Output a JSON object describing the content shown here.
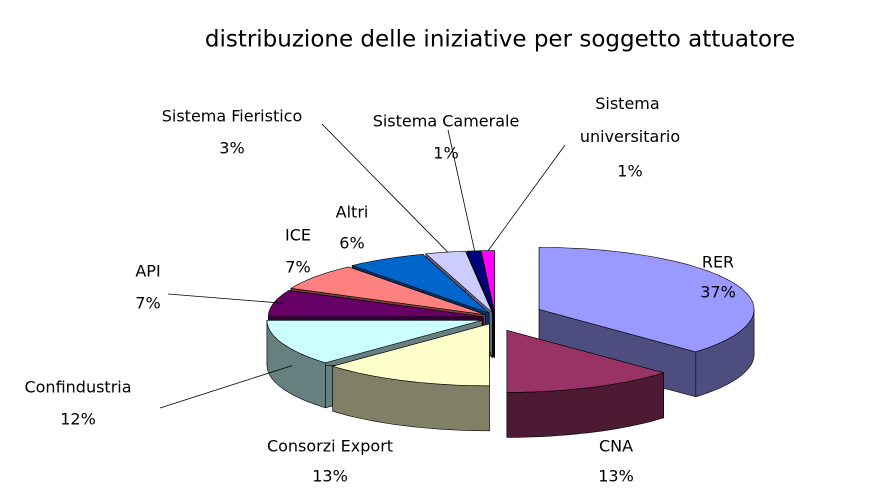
{
  "chart_data": {
    "type": "pie",
    "title": "distribuzione delle iniziative per soggetto attuatore",
    "categories": [
      "RER",
      "CNA",
      "Consorzi Export",
      "Confindustria",
      "API",
      "ICE",
      "Altri",
      "Sistema Fieristico",
      "Sistema Camerale",
      "Sistema universitario"
    ],
    "values": [
      37,
      13,
      13,
      12,
      7,
      7,
      6,
      3,
      1,
      1
    ],
    "value_labels": [
      "37%",
      "13%",
      "13%",
      "12%",
      "7%",
      "7%",
      "6%",
      "3%",
      "1%",
      "1%"
    ],
    "colors": [
      "#9999ff",
      "#993366",
      "#ffffcc",
      "#ccffff",
      "#660066",
      "#ff8080",
      "#0066cc",
      "#ccccff",
      "#000080",
      "#ff00ff"
    ]
  }
}
